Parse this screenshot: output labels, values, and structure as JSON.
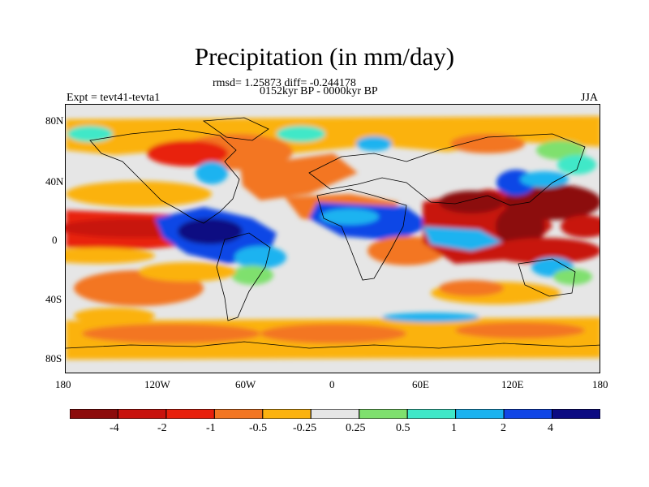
{
  "title": "Precipitation (in mm/day)",
  "stats_line": "rmsd= 1.25873 diff= -0.244178",
  "period_line": "0152kyr BP - 0000kyr BP",
  "experiment": "Expt = tevt41-tevta1",
  "season": "JJA",
  "axes": {
    "y_ticks": [
      "80N",
      "40N",
      "0",
      "40S",
      "80S"
    ],
    "x_ticks": [
      "180",
      "120W",
      "60W",
      "0",
      "60E",
      "120E",
      "180"
    ]
  },
  "colorbar": {
    "labels": [
      "-4",
      "-2",
      "-1",
      "-0.5",
      "-0.25",
      "0.25",
      "0.5",
      "1",
      "2",
      "4"
    ],
    "colors": [
      "#8c0b0b",
      "#c8120d",
      "#e8200c",
      "#f37622",
      "#fbb20f",
      "#e6e6e6",
      "#7fe06e",
      "#3fe8c8",
      "#1bb3f0",
      "#1146e6",
      "#0c0b82"
    ]
  }
}
